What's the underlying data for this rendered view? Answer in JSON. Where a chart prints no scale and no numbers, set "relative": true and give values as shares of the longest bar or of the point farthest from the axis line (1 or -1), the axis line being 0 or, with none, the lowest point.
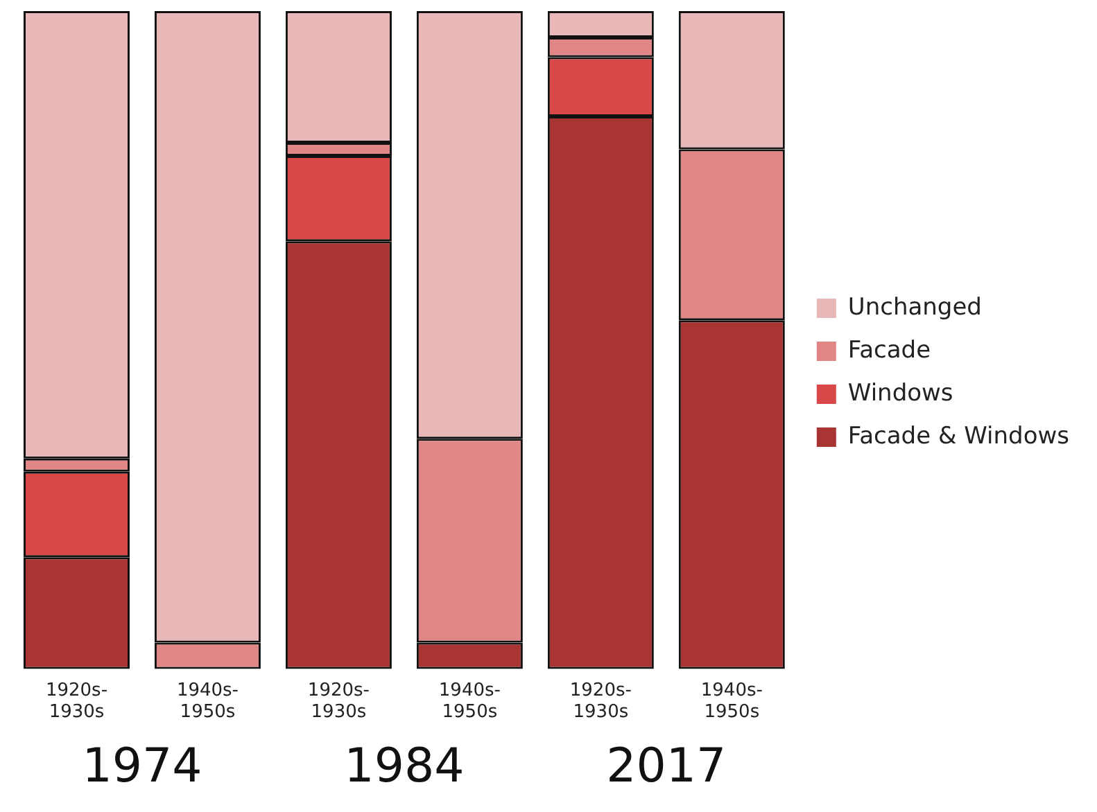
{
  "chart_data": {
    "type": "bar",
    "stacked": true,
    "relative": true,
    "legend": "right",
    "grid": false,
    "categories": [
      "1920s-1930s",
      "1940s-1950s",
      "1920s-1930s",
      "1940s-1950s",
      "1920s-1930s",
      "1940s-1950s"
    ],
    "series": [
      {
        "name": "Facade & Windows",
        "color": "#a83434",
        "values": [
          0.17,
          0,
          0.65,
          0.04,
          0.84,
          0.53
        ]
      },
      {
        "name": "Windows",
        "color": "#d84848",
        "values": [
          0.13,
          0,
          0.13,
          0,
          0.09,
          0
        ]
      },
      {
        "name": "Facade",
        "color": "#e08686",
        "values": [
          0.02,
          0.04,
          0.02,
          0.31,
          0.03,
          0.26
        ]
      },
      {
        "name": "Unchanged",
        "color": "#e8b8b8",
        "values": [
          0.68,
          0.96,
          0.2,
          0.65,
          0.04,
          0.21
        ]
      }
    ],
    "annotations": [
      "1974",
      "1984",
      "2017"
    ]
  }
}
